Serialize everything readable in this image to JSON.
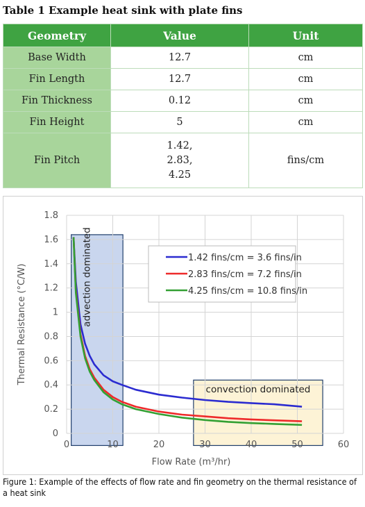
{
  "table": {
    "caption": "Table 1 Example heat sink with plate fins",
    "headers": [
      "Geometry",
      "Value",
      "Unit"
    ],
    "rows": [
      {
        "geometry": "Base Width",
        "value": "12.7",
        "unit": "cm"
      },
      {
        "geometry": "Fin Length",
        "value": "12.7",
        "unit": "cm"
      },
      {
        "geometry": "Fin Thickness",
        "value": "0.12",
        "unit": "cm"
      },
      {
        "geometry": "Fin Height",
        "value": "5",
        "unit": "cm"
      },
      {
        "geometry": "Fin Pitch",
        "value_lines": [
          "1.42,",
          "2.83,",
          "4.25"
        ],
        "unit": "fins/cm"
      }
    ]
  },
  "chart_data": {
    "type": "line",
    "xlabel": "Flow Rate (m³/hr)",
    "ylabel": "Thermal Resistance (°C/W)",
    "xlim": [
      0,
      60
    ],
    "ylim": [
      0,
      1.8
    ],
    "xticks": [
      0,
      10,
      20,
      30,
      40,
      50,
      60
    ],
    "yticks": [
      0,
      0.2,
      0.4,
      0.6,
      0.8,
      1,
      1.2,
      1.4,
      1.6,
      1.8
    ],
    "grid": true,
    "legend_position": "top-right",
    "series": [
      {
        "name": "1.42 fins/cm = 3.6 fins/in",
        "color": "#2b2bd0",
        "x": [
          1.5,
          2,
          3,
          4,
          5,
          6,
          8,
          10,
          12,
          15,
          20,
          25,
          30,
          35,
          40,
          45,
          51
        ],
        "y": [
          1.62,
          1.25,
          0.9,
          0.74,
          0.64,
          0.57,
          0.48,
          0.43,
          0.4,
          0.36,
          0.32,
          0.295,
          0.275,
          0.26,
          0.25,
          0.24,
          0.22
        ]
      },
      {
        "name": "2.83 fins/cm = 7.2 fins/in",
        "color": "#ee2a2a",
        "x": [
          1.5,
          2,
          3,
          4,
          5,
          6,
          8,
          10,
          12,
          15,
          20,
          25,
          30,
          35,
          40,
          45,
          51
        ],
        "y": [
          1.62,
          1.18,
          0.82,
          0.64,
          0.53,
          0.46,
          0.36,
          0.3,
          0.26,
          0.22,
          0.18,
          0.155,
          0.14,
          0.125,
          0.115,
          0.108,
          0.1
        ]
      },
      {
        "name": "4.25 fins/cm = 10.8 fins/in",
        "color": "#33a033",
        "x": [
          1.5,
          2,
          3,
          4,
          5,
          6,
          8,
          10,
          12,
          15,
          20,
          25,
          30,
          35,
          40,
          45,
          51
        ],
        "y": [
          1.62,
          1.16,
          0.8,
          0.62,
          0.51,
          0.44,
          0.34,
          0.28,
          0.24,
          0.2,
          0.16,
          0.13,
          0.11,
          0.095,
          0.085,
          0.078,
          0.07
        ]
      }
    ],
    "regions": [
      {
        "label": "advection dominated",
        "x": [
          1,
          12.2
        ],
        "y": [
          -0.1,
          1.64
        ],
        "color": "#c9d6ee",
        "orientation": "vertical"
      },
      {
        "label": "convection dominated",
        "x": [
          27.5,
          55.5
        ],
        "y": [
          -0.1,
          0.44
        ],
        "color": "#fdf3d6",
        "orientation": "horizontal"
      }
    ]
  },
  "figure_caption": "Figure 1: Example of the effects of flow rate and fin geometry on the thermal resistance of a heat sink"
}
